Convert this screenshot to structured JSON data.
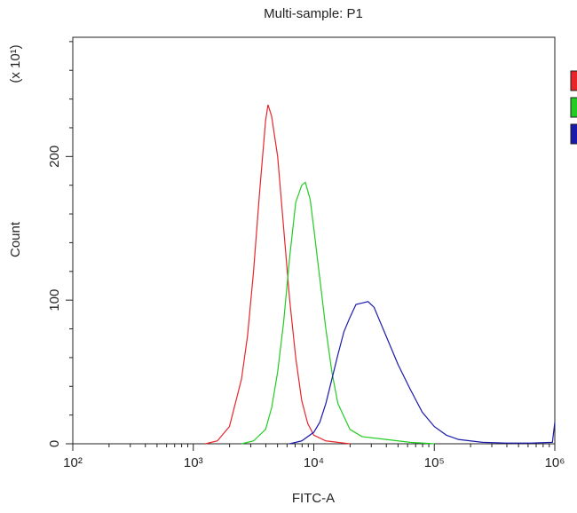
{
  "chart_data": {
    "type": "line",
    "title": "Multi-sample: P1",
    "x_label": "FITC-A",
    "y_label": "Count",
    "y_multiplier_label": "(x 10¹)",
    "xscale": "log",
    "xlim": [
      100,
      1000000
    ],
    "xticks": [
      {
        "value": 100,
        "label": "10²"
      },
      {
        "value": 1000,
        "label": "10³"
      },
      {
        "value": 10000,
        "label": "10⁴"
      },
      {
        "value": 100000,
        "label": "10⁵"
      },
      {
        "value": 1000000,
        "label": "10⁶"
      }
    ],
    "xminorticks": [
      200,
      300,
      400,
      500,
      600,
      700,
      800,
      900,
      2000,
      3000,
      4000,
      5000,
      6000,
      7000,
      8000,
      9000,
      20000,
      30000,
      40000,
      50000,
      60000,
      70000,
      80000,
      90000,
      200000,
      300000,
      400000,
      500000,
      600000,
      700000,
      800000,
      900000
    ],
    "ylim": [
      0,
      283
    ],
    "yticks": [
      0,
      100,
      200
    ],
    "yminorticks": [
      20,
      40,
      60,
      80,
      120,
      140,
      160,
      180,
      220,
      240,
      260,
      280
    ],
    "series": [
      {
        "color": "#e8262a",
        "x": [
          1259,
          1585,
          1995,
          2512,
          2818,
          3162,
          3548,
          3981,
          4169,
          4467,
          5012,
          5623,
          6310,
          7079,
          7943,
          8913,
          10000,
          12589,
          15849,
          19953
        ],
        "values": [
          0,
          2,
          12,
          45,
          75,
          120,
          175,
          225,
          236,
          228,
          200,
          150,
          100,
          60,
          30,
          14,
          6,
          2,
          1,
          0
        ]
      },
      {
        "color": "#22cc22",
        "x": [
          2512,
          3162,
          3981,
          4467,
          5012,
          5623,
          6310,
          7079,
          7943,
          8511,
          9333,
          10000,
          11220,
          12589,
          14125,
          15849,
          19953,
          25119,
          39811,
          63096,
          100000
        ],
        "values": [
          0,
          2,
          10,
          25,
          50,
          85,
          130,
          168,
          180,
          182,
          170,
          150,
          115,
          80,
          50,
          28,
          10,
          5,
          3,
          1,
          0
        ]
      },
      {
        "color": "#1a1aaa",
        "x": [
          6310,
          7943,
          10000,
          11220,
          12589,
          14125,
          15849,
          17783,
          19953,
          22387,
          25119,
          28184,
          31623,
          35481,
          39811,
          50119,
          63096,
          79433,
          100000,
          125893,
          158489,
          251189,
          398107,
          630957,
          954993,
          1000000
        ],
        "values": [
          0,
          2,
          8,
          15,
          28,
          45,
          62,
          78,
          88,
          97,
          98,
          99,
          95,
          85,
          75,
          55,
          38,
          22,
          12,
          6,
          3,
          1,
          0.5,
          0.5,
          1,
          15
        ]
      }
    ]
  }
}
